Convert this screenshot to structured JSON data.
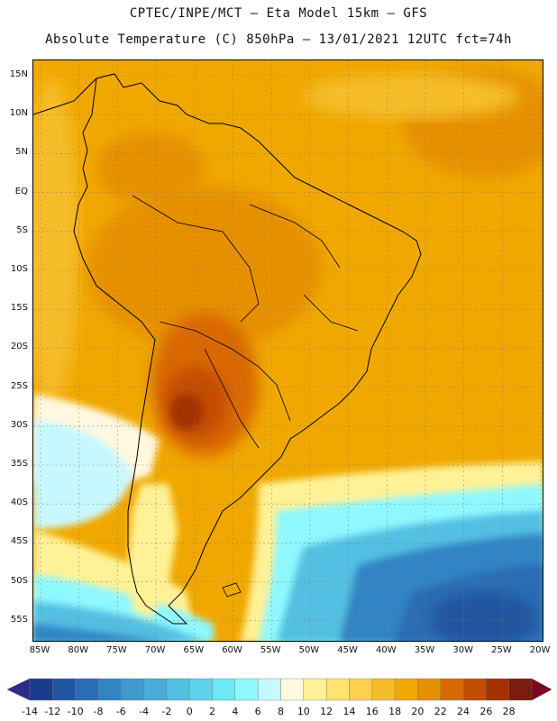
{
  "title": {
    "line1": "CPTEC/INPE/MCT –  Eta Model 15km – GFS",
    "line2": "Absolute Temperature (C) 850hPa – 13/01/2021 12UTC fct=74h"
  },
  "map": {
    "lat_labels": [
      "15N",
      "10N",
      "5N",
      "EQ",
      "5S",
      "10S",
      "15S",
      "20S",
      "25S",
      "30S",
      "35S",
      "40S",
      "45S",
      "50S",
      "55S"
    ],
    "lon_labels": [
      "85W",
      "80W",
      "75W",
      "70W",
      "65W",
      "60W",
      "55W",
      "50W",
      "45W",
      "40W",
      "35W",
      "30W",
      "25W",
      "20W"
    ],
    "ocean_color": "#f0a800",
    "land_border_color": "#000000"
  },
  "colorbar": {
    "labels": [
      "-14",
      "-12",
      "-10",
      "-8",
      "-6",
      "-4",
      "-2",
      "0",
      "2",
      "4",
      "6",
      "8",
      "10",
      "12",
      "14",
      "16",
      "18",
      "20",
      "22",
      "24",
      "26",
      "28"
    ],
    "colors": [
      "#1a3c8c",
      "#2255a0",
      "#2a6db4",
      "#3384c4",
      "#3e99cf",
      "#49acd8",
      "#52bfe2",
      "#5dd3ec",
      "#6ee8f4",
      "#8ff8ff",
      "#c8f8ff",
      "#fff8e0",
      "#fff296",
      "#ffe270",
      "#ffd050",
      "#f6bd2a",
      "#f0a800",
      "#e69000",
      "#d96800",
      "#c24c00",
      "#a33000",
      "#7a1c10"
    ],
    "under_color": "#2a2e88",
    "over_color": "#7a0a20"
  }
}
